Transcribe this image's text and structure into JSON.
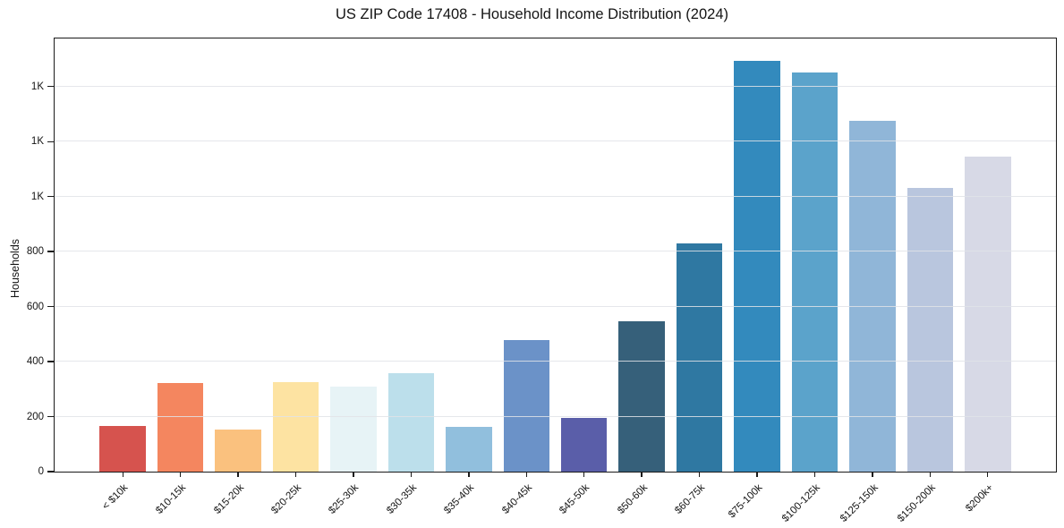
{
  "chart": {
    "title": "US ZIP Code 17408 - Household Income Distribution (2024)",
    "ylabel": "Households"
  },
  "chart_data": {
    "type": "bar",
    "title": "US ZIP Code 17408 - Household Income Distribution (2024)",
    "xlabel": "",
    "ylabel": "Households",
    "categories": [
      "< $10k",
      "$10-15k",
      "$15-20k",
      "$20-25k",
      "$25-30k",
      "$30-35k",
      "$35-40k",
      "$40-45k",
      "$45-50k",
      "$50-60k",
      "$60-75k",
      "$75-100k",
      "$100-125k",
      "$125-150k",
      "$150-200k",
      "$200k+"
    ],
    "values": [
      165,
      322,
      154,
      324,
      309,
      358,
      162,
      478,
      196,
      546,
      830,
      1494,
      1451,
      1275,
      1032,
      1147
    ],
    "bar_colors": [
      "#d6534e",
      "#f4865f",
      "#fac17e",
      "#fde3a2",
      "#e7f3f6",
      "#bcdfeb",
      "#91bfdd",
      "#6b92c8",
      "#5a5ea9",
      "#36607a",
      "#2f78a2",
      "#338abd",
      "#5ba3cb",
      "#90b6d8",
      "#b9c6de",
      "#d7d9e6"
    ],
    "ylim": [
      0,
      1575
    ],
    "yticks": {
      "values": [
        0,
        200,
        400,
        600,
        800,
        1000,
        1200,
        1400
      ],
      "labels": [
        "0",
        "200",
        "400",
        "600",
        "800",
        "1K",
        "1K",
        "1K"
      ]
    },
    "grid": "horizontal",
    "legend": "none",
    "xtick_rotation": 45,
    "bar_alpha_note": "gridlines faintly visible across bars"
  }
}
